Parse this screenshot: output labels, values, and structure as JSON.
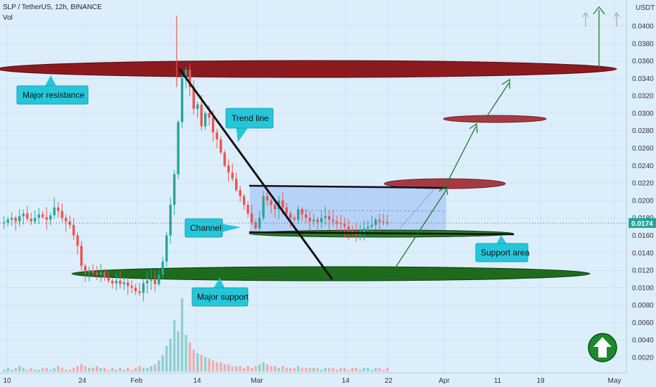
{
  "header": {
    "title": "SLP / TetherUS, 12h, BINANCE",
    "volume_label": "Vol",
    "currency": "USDT"
  },
  "price_axis": {
    "ticks": [
      "0.0400",
      "0.0380",
      "0.0360",
      "0.0340",
      "0.0320",
      "0.0300",
      "0.0280",
      "0.0260",
      "0.0240",
      "0.0220",
      "0.0200",
      "0.0180",
      "0.0160",
      "0.0140",
      "0.0120",
      "0.0100",
      "0.0080",
      "0.0060",
      "0.0040",
      "0.0020"
    ],
    "current_price": "0.0174"
  },
  "time_axis": {
    "labels": [
      "10",
      "24",
      "Feb",
      "14",
      "Mar",
      "14",
      "22",
      "Apr",
      "11",
      "19",
      "May"
    ]
  },
  "annotations": {
    "major_resistance": "Major resistance",
    "trend_line": "Trend line",
    "channel": "Channel",
    "support_area": "Support area",
    "major_support": "Major support"
  },
  "colors": {
    "background": "#ddeefb",
    "up_candle": "#26a69a",
    "down_candle": "#ef5350",
    "resistance_zone": "#8b1a1f",
    "support_zone": "#1e6b1e",
    "channel_fill": "#a9c8f5",
    "callout": "#26c6da",
    "arrow_green": "#1b7a2a",
    "price_tag": "#26a69a"
  },
  "icons": {
    "bullish_badge": "up-arrow-circle-icon"
  },
  "chart_data": {
    "type": "candlestick",
    "price_range": [
      0.001,
      0.042
    ],
    "key_levels": {
      "major_resistance": 0.035,
      "resistance_1": 0.0293,
      "resistance_2": 0.0218,
      "channel_top": 0.0217,
      "channel_bottom": 0.0163,
      "support_area": 0.0161,
      "major_support": 0.0115
    },
    "close_path": [
      0.0175,
      0.0178,
      0.018,
      0.0176,
      0.0182,
      0.0185,
      0.0179,
      0.0176,
      0.018,
      0.0184,
      0.0181,
      0.0178,
      0.0183,
      0.0192,
      0.0188,
      0.018,
      0.0176,
      0.0172,
      0.016,
      0.0148,
      0.0125,
      0.0118,
      0.012,
      0.0117,
      0.0115,
      0.0118,
      0.0112,
      0.0108,
      0.0105,
      0.0108,
      0.0104,
      0.0106,
      0.0102,
      0.01,
      0.0096,
      0.0094,
      0.0105,
      0.0108,
      0.011,
      0.0104,
      0.0115,
      0.013,
      0.016,
      0.0195,
      0.023,
      0.029,
      0.034,
      0.035,
      0.033,
      0.0305,
      0.031,
      0.0285,
      0.03,
      0.0295,
      0.0278,
      0.027,
      0.0255,
      0.024,
      0.0232,
      0.0225,
      0.0212,
      0.0205,
      0.0195,
      0.0185,
      0.0175,
      0.0168,
      0.018,
      0.0205,
      0.02,
      0.0195,
      0.019,
      0.02,
      0.0192,
      0.0185,
      0.018,
      0.0178,
      0.019,
      0.0184,
      0.018,
      0.0176,
      0.0178,
      0.0175,
      0.018,
      0.0182,
      0.0178,
      0.0176,
      0.0174,
      0.0173,
      0.017,
      0.0165,
      0.0162,
      0.016,
      0.0164,
      0.0168,
      0.017,
      0.0172,
      0.0178,
      0.0176,
      0.0175,
      0.0174
    ],
    "volume_profile": [
      1,
      2,
      1,
      2,
      3,
      2,
      1,
      2,
      1,
      1,
      2,
      2,
      1,
      2,
      3,
      2,
      1,
      1,
      2,
      3,
      4,
      3,
      2,
      2,
      3,
      2,
      2,
      1,
      2,
      1,
      2,
      1,
      2,
      1,
      2,
      3,
      2,
      2,
      3,
      4,
      6,
      9,
      14,
      18,
      28,
      22,
      40,
      20,
      16,
      12,
      10,
      9,
      8,
      7,
      6,
      5,
      5,
      4,
      4,
      3,
      3,
      3,
      2,
      3,
      2,
      3,
      4,
      5,
      4,
      3,
      3,
      2,
      3,
      2,
      2,
      2,
      3,
      2,
      2,
      2,
      2,
      2,
      1,
      2,
      2,
      2,
      1,
      2,
      2,
      1,
      2,
      2,
      1,
      2,
      2,
      1,
      2,
      2,
      1,
      2
    ]
  }
}
